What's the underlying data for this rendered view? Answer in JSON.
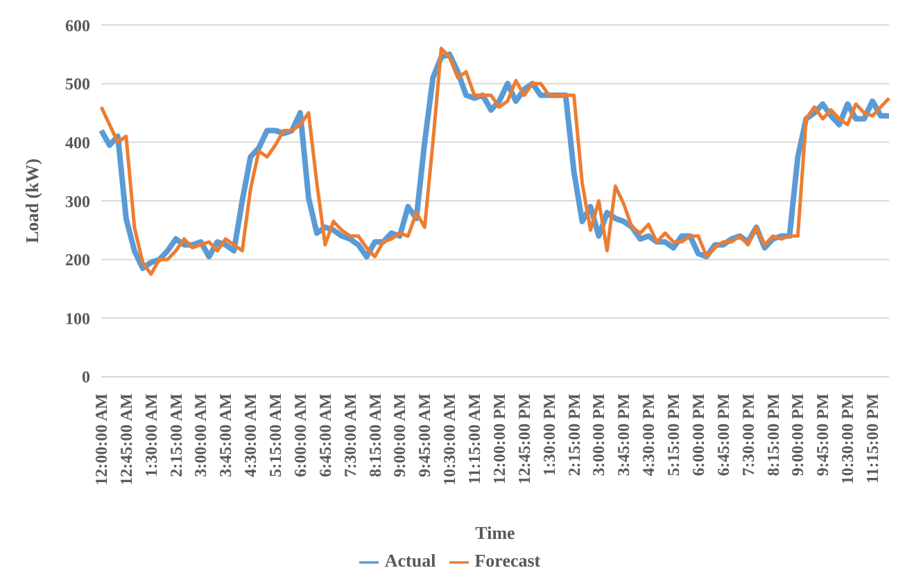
{
  "chart_data": {
    "type": "line",
    "xlabel": "Time",
    "ylabel": "Load (kW)",
    "categories": [
      "12:00:00 AM",
      null,
      null,
      "12:45:00 AM",
      null,
      null,
      "1:30:00 AM",
      null,
      null,
      "2:15:00 AM",
      null,
      null,
      "3:00:00 AM",
      null,
      null,
      "3:45:00 AM",
      null,
      null,
      "4:30:00 AM",
      null,
      null,
      "5:15:00 AM",
      null,
      null,
      "6:00:00 AM",
      null,
      null,
      "6:45:00 AM",
      null,
      null,
      "7:30:00 AM",
      null,
      null,
      "8:15:00 AM",
      null,
      null,
      "9:00:00 AM",
      null,
      null,
      "9:45:00 AM",
      null,
      null,
      "10:30:00 AM",
      null,
      null,
      "11:15:00 AM",
      null,
      null,
      "12:00:00 PM",
      null,
      null,
      "12:45:00 PM",
      null,
      null,
      "1:30:00 PM",
      null,
      null,
      "2:15:00 PM",
      null,
      null,
      "3:00:00 PM",
      null,
      null,
      "3:45:00 PM",
      null,
      null,
      "4:30:00 PM",
      null,
      null,
      "5:15:00 PM",
      null,
      null,
      "6:00:00 PM",
      null,
      null,
      "6:45:00 PM",
      null,
      null,
      "7:30:00 PM",
      null,
      null,
      "8:15:00 PM",
      null,
      null,
      "9:00:00 PM",
      null,
      null,
      "9:45:00 PM",
      null,
      null,
      "10:30:00 PM",
      null,
      null,
      "11:15:00 PM",
      null,
      null
    ],
    "series": [
      {
        "name": "Actual",
        "color": "#5b9bd5",
        "values": [
          420,
          395,
          410,
          270,
          215,
          185,
          195,
          200,
          215,
          235,
          225,
          225,
          230,
          205,
          230,
          225,
          215,
          300,
          375,
          390,
          420,
          420,
          415,
          420,
          450,
          305,
          245,
          255,
          250,
          240,
          235,
          225,
          205,
          230,
          230,
          245,
          240,
          290,
          270,
          400,
          510,
          545,
          550,
          520,
          480,
          475,
          480,
          455,
          470,
          500,
          470,
          490,
          500,
          480,
          480,
          480,
          480,
          350,
          265,
          290,
          240,
          280,
          270,
          265,
          255,
          235,
          240,
          230,
          230,
          220,
          240,
          240,
          210,
          205,
          225,
          225,
          235,
          240,
          230,
          255,
          220,
          235,
          240,
          240,
          375,
          440,
          450,
          465,
          445,
          430,
          465,
          440,
          440,
          470,
          445,
          445
        ]
      },
      {
        "name": "Forecast",
        "color": "#ed7d31",
        "values": [
          460,
          430,
          400,
          410,
          255,
          195,
          175,
          200,
          200,
          215,
          235,
          220,
          225,
          230,
          215,
          235,
          225,
          215,
          320,
          385,
          375,
          395,
          420,
          420,
          430,
          450,
          330,
          225,
          265,
          250,
          240,
          240,
          220,
          205,
          230,
          235,
          245,
          240,
          280,
          255,
          400,
          560,
          545,
          510,
          520,
          480,
          480,
          480,
          460,
          470,
          505,
          480,
          500,
          500,
          480,
          480,
          480,
          480,
          330,
          250,
          300,
          215,
          325,
          295,
          255,
          245,
          260,
          230,
          245,
          230,
          230,
          240,
          240,
          205,
          220,
          230,
          230,
          240,
          225,
          255,
          225,
          240,
          235,
          240,
          240,
          440,
          460,
          440,
          455,
          440,
          430,
          465,
          450,
          445,
          460,
          475
        ]
      }
    ],
    "ylim": [
      0,
      600
    ],
    "yticks": [
      0,
      100,
      200,
      300,
      400,
      500,
      600
    ],
    "grid": "y",
    "legend": "bottom",
    "marker": "none",
    "line_style": "solid"
  }
}
